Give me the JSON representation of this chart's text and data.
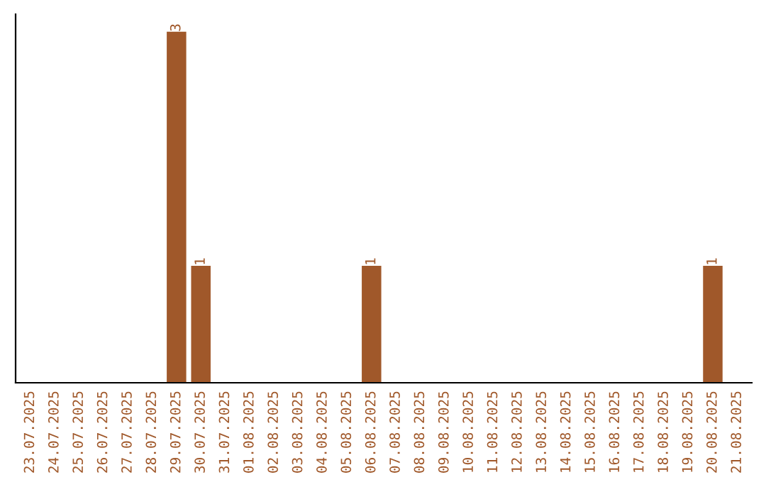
{
  "chart_data": {
    "type": "bar",
    "categories": [
      "23.07.2025",
      "24.07.2025",
      "25.07.2025",
      "26.07.2025",
      "27.07.2025",
      "28.07.2025",
      "29.07.2025",
      "30.07.2025",
      "31.07.2025",
      "01.08.2025",
      "02.08.2025",
      "03.08.2025",
      "04.08.2025",
      "05.08.2025",
      "06.08.2025",
      "07.08.2025",
      "08.08.2025",
      "09.08.2025",
      "10.08.2025",
      "11.08.2025",
      "12.08.2025",
      "13.08.2025",
      "14.08.2025",
      "15.08.2025",
      "16.08.2025",
      "17.08.2025",
      "18.08.2025",
      "19.08.2025",
      "20.08.2025",
      "21.08.2025"
    ],
    "values": [
      0,
      0,
      0,
      0,
      0,
      0,
      3,
      1,
      0,
      0,
      0,
      0,
      0,
      0,
      1,
      0,
      0,
      0,
      0,
      0,
      0,
      0,
      0,
      0,
      0,
      0,
      0,
      0,
      1,
      0
    ],
    "value_labels": [
      null,
      null,
      null,
      null,
      null,
      null,
      "3",
      "1",
      null,
      null,
      null,
      null,
      null,
      null,
      "1",
      null,
      null,
      null,
      null,
      null,
      null,
      null,
      null,
      null,
      null,
      null,
      null,
      null,
      "1",
      null
    ],
    "color": "#a0582a",
    "tick_labels": "x",
    "grid": false,
    "legend": false
  }
}
